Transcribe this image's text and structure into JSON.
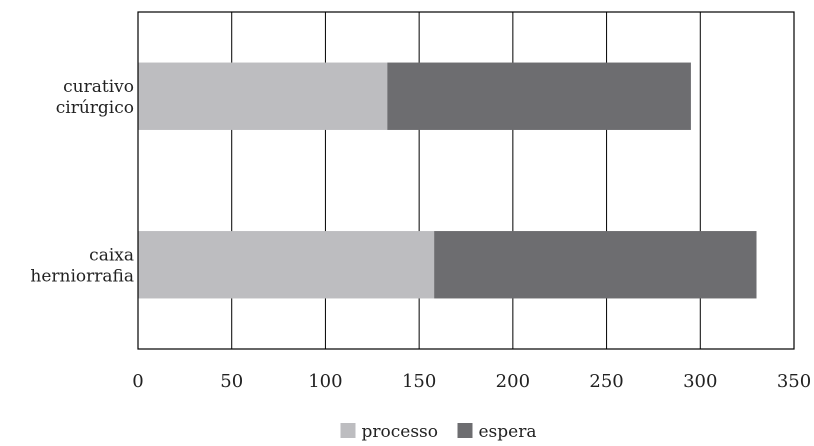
{
  "chart_data": {
    "type": "bar",
    "orientation": "horizontal",
    "stacked": true,
    "categories": [
      [
        "curativo",
        "cirúrgico"
      ],
      [
        "caixa",
        "herniorrafia"
      ]
    ],
    "series": [
      {
        "name": "processo",
        "color": "#bdbdc0",
        "values": [
          133,
          158
        ]
      },
      {
        "name": "espera",
        "color": "#6d6d70",
        "values": [
          162,
          172
        ]
      }
    ],
    "xlim": [
      0,
      350
    ],
    "xticks": [
      0,
      50,
      100,
      150,
      200,
      250,
      300,
      350
    ],
    "grid": "vertical",
    "legend": "bottom-center"
  }
}
